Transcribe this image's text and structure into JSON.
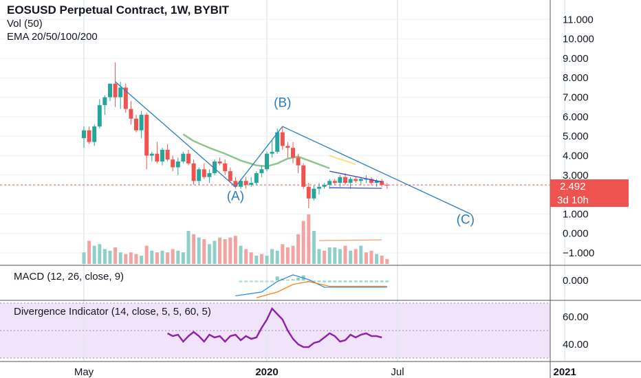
{
  "header": {
    "title": "EOSUSD Perpetual Contract, 1W, BYBIT",
    "volume": "Vol (50)",
    "ema": "EMA 20/50/100/200"
  },
  "colors": {
    "up": "#26a69a",
    "down": "#ef5350",
    "up_vol": "#8fcfc7",
    "down_vol": "#f4a3a3",
    "wave": "#2a7fc0",
    "ema_green": "#8cc68a",
    "ema_yellow": "#f5e27a",
    "macd": "#1e88e5",
    "signal": "#f57c00",
    "divergence": "#8e24aa",
    "divergence_bg": "#f1e4fa"
  },
  "chart_data": {
    "type": "candlestick",
    "title": "EOSUSD Perpetual Contract, 1W, BYBIT",
    "price_axis": {
      "ticks": [
        "11.000",
        "10.000",
        "9.000",
        "8.000",
        "7.000",
        "6.000",
        "5.000",
        "4.000",
        "3.000",
        "1.000",
        "0.000",
        "−1.000"
      ],
      "tick_values": [
        11,
        10,
        9,
        8,
        7,
        6,
        5,
        4,
        3,
        1,
        0,
        -1
      ],
      "range": [
        -1.6,
        12
      ],
      "last_price": "2.492",
      "countdown": "3d 10h",
      "last_price_value": 2.492
    },
    "time_axis": {
      "labels": [
        "May",
        "2020",
        "Jul",
        "2021"
      ],
      "label_week_index": [
        0,
        35,
        60,
        92
      ],
      "grid": true
    },
    "candles": [
      [
        4.9,
        5.5,
        4.4,
        5.3
      ],
      [
        5.3,
        5.5,
        4.6,
        4.7
      ],
      [
        4.7,
        5.6,
        4.5,
        5.5
      ],
      [
        5.5,
        6.9,
        5.4,
        6.6
      ],
      [
        6.6,
        7.1,
        6.1,
        7.0
      ],
      [
        7.0,
        7.7,
        6.8,
        7.7
      ],
      [
        7.7,
        8.8,
        6.5,
        7.0
      ],
      [
        7.0,
        7.8,
        6.4,
        7.5
      ],
      [
        7.5,
        7.7,
        6.2,
        6.4
      ],
      [
        6.4,
        6.8,
        5.6,
        5.9
      ],
      [
        5.9,
        6.1,
        5.2,
        5.3
      ],
      [
        5.3,
        6.3,
        4.9,
        6.1
      ],
      [
        6.1,
        6.2,
        3.3,
        4.0
      ],
      [
        4.0,
        4.2,
        3.7,
        4.1
      ],
      [
        4.1,
        4.7,
        3.6,
        3.7
      ],
      [
        3.7,
        4.4,
        3.5,
        4.3
      ],
      [
        4.3,
        4.6,
        3.7,
        3.8
      ],
      [
        3.8,
        4.0,
        3.2,
        3.4
      ],
      [
        3.4,
        3.9,
        3.0,
        3.7
      ],
      [
        3.7,
        4.2,
        3.6,
        4.1
      ],
      [
        4.1,
        4.3,
        3.5,
        3.6
      ],
      [
        3.6,
        3.8,
        2.5,
        2.7
      ],
      [
        2.7,
        3.4,
        2.5,
        3.3
      ],
      [
        3.3,
        3.6,
        2.8,
        2.9
      ],
      [
        2.9,
        3.3,
        2.6,
        3.1
      ],
      [
        3.1,
        3.8,
        3.0,
        3.7
      ],
      [
        3.7,
        3.9,
        3.5,
        3.6
      ],
      [
        3.6,
        3.8,
        3.0,
        3.2
      ],
      [
        3.2,
        3.4,
        2.6,
        2.7
      ],
      [
        2.7,
        2.9,
        2.3,
        2.4
      ],
      [
        2.4,
        2.8,
        2.3,
        2.7
      ],
      [
        2.7,
        2.9,
        2.3,
        2.5
      ],
      [
        2.5,
        2.9,
        2.4,
        2.6
      ],
      [
        2.6,
        3.2,
        2.5,
        3.1
      ],
      [
        3.1,
        3.5,
        2.9,
        3.3
      ],
      [
        3.3,
        4.2,
        3.2,
        4.1
      ],
      [
        4.1,
        4.8,
        3.9,
        4.2
      ],
      [
        4.2,
        5.4,
        4.1,
        5.2
      ],
      [
        5.2,
        5.5,
        4.3,
        4.5
      ],
      [
        4.5,
        4.7,
        3.9,
        4.4
      ],
      [
        4.4,
        4.7,
        3.6,
        3.9
      ],
      [
        3.9,
        4.1,
        3.1,
        3.5
      ],
      [
        3.5,
        3.6,
        2.3,
        2.4
      ],
      [
        2.4,
        2.6,
        1.3,
        1.8
      ],
      [
        1.8,
        2.5,
        1.7,
        2.3
      ],
      [
        2.3,
        2.6,
        2.0,
        2.4
      ],
      [
        2.4,
        2.6,
        2.3,
        2.5
      ],
      [
        2.5,
        2.8,
        2.3,
        2.7
      ],
      [
        2.7,
        2.8,
        2.5,
        2.6
      ],
      [
        2.6,
        3.0,
        2.4,
        2.9
      ],
      [
        2.9,
        3.1,
        2.5,
        2.6
      ],
      [
        2.6,
        2.9,
        2.3,
        2.8
      ],
      [
        2.8,
        2.9,
        2.6,
        2.7
      ],
      [
        2.7,
        2.9,
        2.5,
        2.8
      ],
      [
        2.8,
        3.0,
        2.6,
        2.8
      ],
      [
        2.8,
        2.9,
        2.5,
        2.6
      ],
      [
        2.6,
        2.8,
        2.4,
        2.7
      ],
      [
        2.7,
        2.8,
        2.4,
        2.5
      ],
      [
        2.5,
        2.6,
        2.3,
        2.49
      ]
    ],
    "volume": [
      [
        0.35,
        1
      ],
      [
        0.7,
        0
      ],
      [
        0.55,
        1
      ],
      [
        0.6,
        1
      ],
      [
        0.45,
        1
      ],
      [
        0.4,
        1
      ],
      [
        0.5,
        0
      ],
      [
        0.35,
        1
      ],
      [
        0.3,
        0
      ],
      [
        0.35,
        0
      ],
      [
        0.3,
        0
      ],
      [
        0.25,
        1
      ],
      [
        0.55,
        0
      ],
      [
        0.4,
        1
      ],
      [
        0.35,
        0
      ],
      [
        0.4,
        1
      ],
      [
        0.35,
        0
      ],
      [
        0.45,
        0
      ],
      [
        0.4,
        1
      ],
      [
        0.35,
        1
      ],
      [
        1.0,
        1
      ],
      [
        0.9,
        0
      ],
      [
        0.8,
        1
      ],
      [
        0.75,
        0
      ],
      [
        0.6,
        1
      ],
      [
        0.7,
        1
      ],
      [
        0.8,
        0
      ],
      [
        0.75,
        0
      ],
      [
        0.8,
        0
      ],
      [
        0.85,
        0
      ],
      [
        0.55,
        1
      ],
      [
        0.45,
        0
      ],
      [
        0.35,
        0
      ],
      [
        0.25,
        1
      ],
      [
        0.3,
        0
      ],
      [
        0.25,
        1
      ],
      [
        0.45,
        1
      ],
      [
        0.4,
        1
      ],
      [
        0.6,
        0
      ],
      [
        0.5,
        0
      ],
      [
        0.55,
        0
      ],
      [
        0.9,
        0
      ],
      [
        1.3,
        0
      ],
      [
        1.5,
        0
      ],
      [
        1.0,
        1
      ],
      [
        0.45,
        1
      ],
      [
        0.4,
        0
      ],
      [
        0.5,
        1
      ],
      [
        0.5,
        1
      ],
      [
        0.45,
        1
      ],
      [
        0.55,
        0
      ],
      [
        0.4,
        1
      ],
      [
        0.45,
        0
      ],
      [
        0.55,
        1
      ],
      [
        0.35,
        0
      ],
      [
        0.4,
        0
      ],
      [
        0.3,
        1
      ],
      [
        0.25,
        0
      ],
      [
        0.15,
        0
      ]
    ],
    "ema_green": [
      [
        19,
        5.1
      ],
      [
        21,
        4.75
      ],
      [
        24,
        4.4
      ],
      [
        27,
        4.1
      ],
      [
        30,
        3.75
      ],
      [
        33,
        3.5
      ],
      [
        35,
        3.45
      ],
      [
        37,
        3.6
      ],
      [
        39,
        3.85
      ],
      [
        41,
        3.95
      ],
      [
        43,
        3.75
      ],
      [
        45,
        3.55
      ],
      [
        47,
        3.35
      ]
    ],
    "ema_yellow": [
      [
        47,
        4.0
      ],
      [
        52,
        3.55
      ]
    ],
    "macd_line": [
      [
        29,
        -0.8
      ],
      [
        34,
        -0.6
      ],
      [
        37,
        -0.05
      ],
      [
        40,
        0.3
      ],
      [
        43,
        0.05
      ],
      [
        46,
        -0.35
      ],
      [
        58,
        -0.35
      ]
    ],
    "signal_line": [
      [
        33,
        -0.9
      ],
      [
        37,
        -0.6
      ],
      [
        40,
        -0.2
      ],
      [
        43,
        -0.05
      ],
      [
        47,
        -0.3
      ],
      [
        58,
        -0.3
      ]
    ],
    "divergence": [
      [
        16,
        48
      ],
      [
        17,
        46
      ],
      [
        18,
        47
      ],
      [
        19,
        42
      ],
      [
        20,
        46
      ],
      [
        21,
        49
      ],
      [
        22,
        46
      ],
      [
        23,
        42
      ],
      [
        24,
        47
      ],
      [
        25,
        45
      ],
      [
        26,
        46
      ],
      [
        27,
        42
      ],
      [
        28,
        46
      ],
      [
        29,
        47
      ],
      [
        30,
        43
      ],
      [
        31,
        46
      ],
      [
        32,
        44
      ],
      [
        33,
        45
      ],
      [
        34,
        52
      ],
      [
        35,
        58
      ],
      [
        36,
        66
      ],
      [
        37,
        62
      ],
      [
        38,
        58
      ],
      [
        39,
        50
      ],
      [
        40,
        44
      ],
      [
        41,
        40
      ],
      [
        42,
        38
      ],
      [
        43,
        38
      ],
      [
        44,
        41
      ],
      [
        45,
        42
      ],
      [
        46,
        45
      ],
      [
        47,
        48
      ],
      [
        48,
        46
      ],
      [
        49,
        42
      ],
      [
        50,
        43
      ],
      [
        51,
        47
      ],
      [
        52,
        45
      ],
      [
        53,
        47
      ],
      [
        54,
        48
      ],
      [
        55,
        46
      ],
      [
        56,
        46
      ],
      [
        57,
        45
      ]
    ],
    "wave_labels": [
      {
        "text": "(A)",
        "week": 29,
        "price": 1.7
      },
      {
        "text": "(B)",
        "week": 38,
        "price": 6.5
      },
      {
        "text": "(C)",
        "week": 73,
        "price": 0.5
      }
    ],
    "wave_path": [
      [
        6,
        7.8
      ],
      [
        29,
        2.4
      ],
      [
        38,
        5.5
      ],
      [
        74,
        1.0
      ]
    ],
    "triangle_upper": [
      [
        47,
        3.2
      ],
      [
        57,
        2.65
      ]
    ],
    "triangle_lower": [
      [
        47,
        2.35
      ],
      [
        57,
        2.32
      ]
    ],
    "macd_panel": {
      "label": "MACD (12, 26, close, 9)",
      "ticks": [
        "0.000"
      ],
      "tick_values": [
        0
      ],
      "range": [
        -1.0,
        0.8
      ]
    },
    "divergence_panel": {
      "label": "Divergence Indicator (14, close, 5, 5, 60, 5)",
      "ticks": [
        "60.00",
        "40.00"
      ],
      "tick_values": [
        60,
        40
      ],
      "range": [
        28,
        72
      ]
    }
  }
}
